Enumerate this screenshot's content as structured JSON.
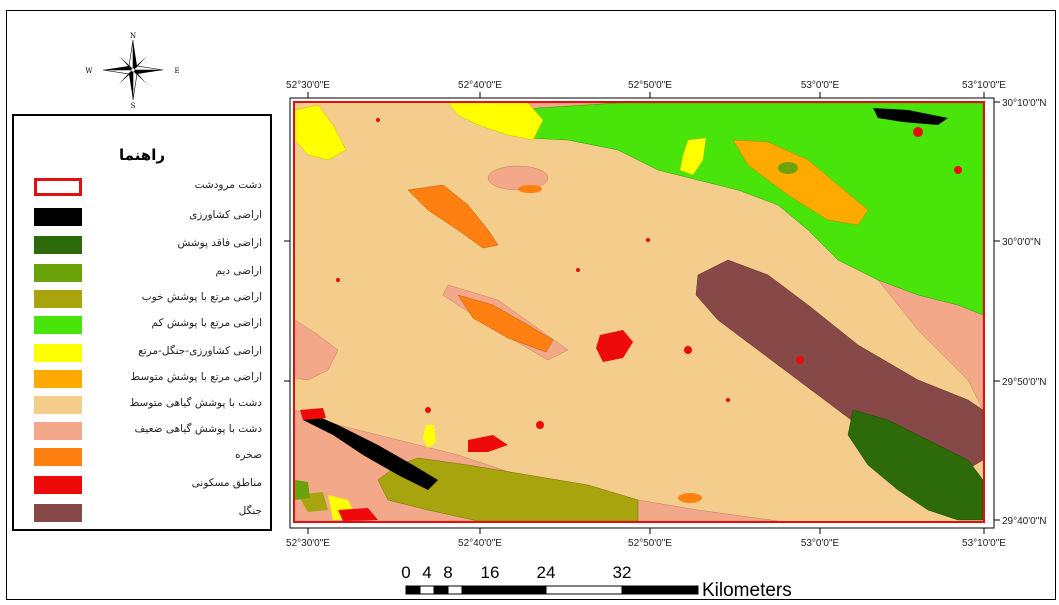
{
  "legend": {
    "title": "راهنما",
    "items": [
      {
        "label": "دشت مرودشت",
        "color": "#ffffff",
        "outline": "#e01010"
      },
      {
        "label": "اراضی کشاورزی",
        "color": "#000000"
      },
      {
        "label": "اراضی فاقد پوشش",
        "color": "#2d6a0a"
      },
      {
        "label": "اراضی دیم",
        "color": "#6aa20a"
      },
      {
        "label": "اراضی مرتع با پوشش خوب",
        "color": "#a8a40e"
      },
      {
        "label": "اراضی مرتع با پوشش کم",
        "color": "#48e40a"
      },
      {
        "label": "اراضی کشاورزی-جنگل-مرتع",
        "color": "#ffff00"
      },
      {
        "label": "اراضی مرتع با پوشش متوسط",
        "color": "#ffaa00"
      },
      {
        "label": "دشت با پوشش گیاهی متوسط",
        "color": "#f4cc8c"
      },
      {
        "label": "دشت با پوشش گیاهی ضعیف",
        "color": "#f4a88a"
      },
      {
        "label": "صخره",
        "color": "#ff7f10"
      },
      {
        "label": "مناطق مسکونی",
        "color": "#ee0a0a"
      },
      {
        "label": "جنگل",
        "color": "#874848"
      }
    ]
  },
  "compass": {
    "n": "N",
    "s": "S",
    "e": "E",
    "w": "W"
  },
  "map": {
    "top_lon_labels": [
      "52°30'0\"E",
      "52°40'0\"E",
      "52°50'0\"E",
      "53°0'0\"E",
      "53°10'0\"E"
    ],
    "bottom_lon_labels": [
      "52°30'0\"E",
      "52°40'0\"E",
      "52°50'0\"E",
      "53°0'0\"E",
      "53°10'0\"E"
    ],
    "right_lat_labels": [
      "30°10'0\"N",
      "30°0'0\"N",
      "29°50'0\"N",
      "29°40'0\"N"
    ]
  },
  "scalebar": {
    "ticks": [
      "0",
      "4",
      "8",
      "16",
      "24",
      "32"
    ],
    "unit": "Kilometers"
  },
  "colors": {
    "base": "#f4cc8c",
    "weak": "#f4a88a",
    "low_range": "#48e40a",
    "forest": "#874848",
    "medium_range": "#ffaa00",
    "rock": "#ff7f10",
    "urban": "#ee0a0a",
    "agri": "#000000",
    "bare": "#2d6a0a",
    "dry": "#6aa20a",
    "good_range": "#a8a40e",
    "mixed": "#ffff00",
    "boundary": "#e01010"
  }
}
